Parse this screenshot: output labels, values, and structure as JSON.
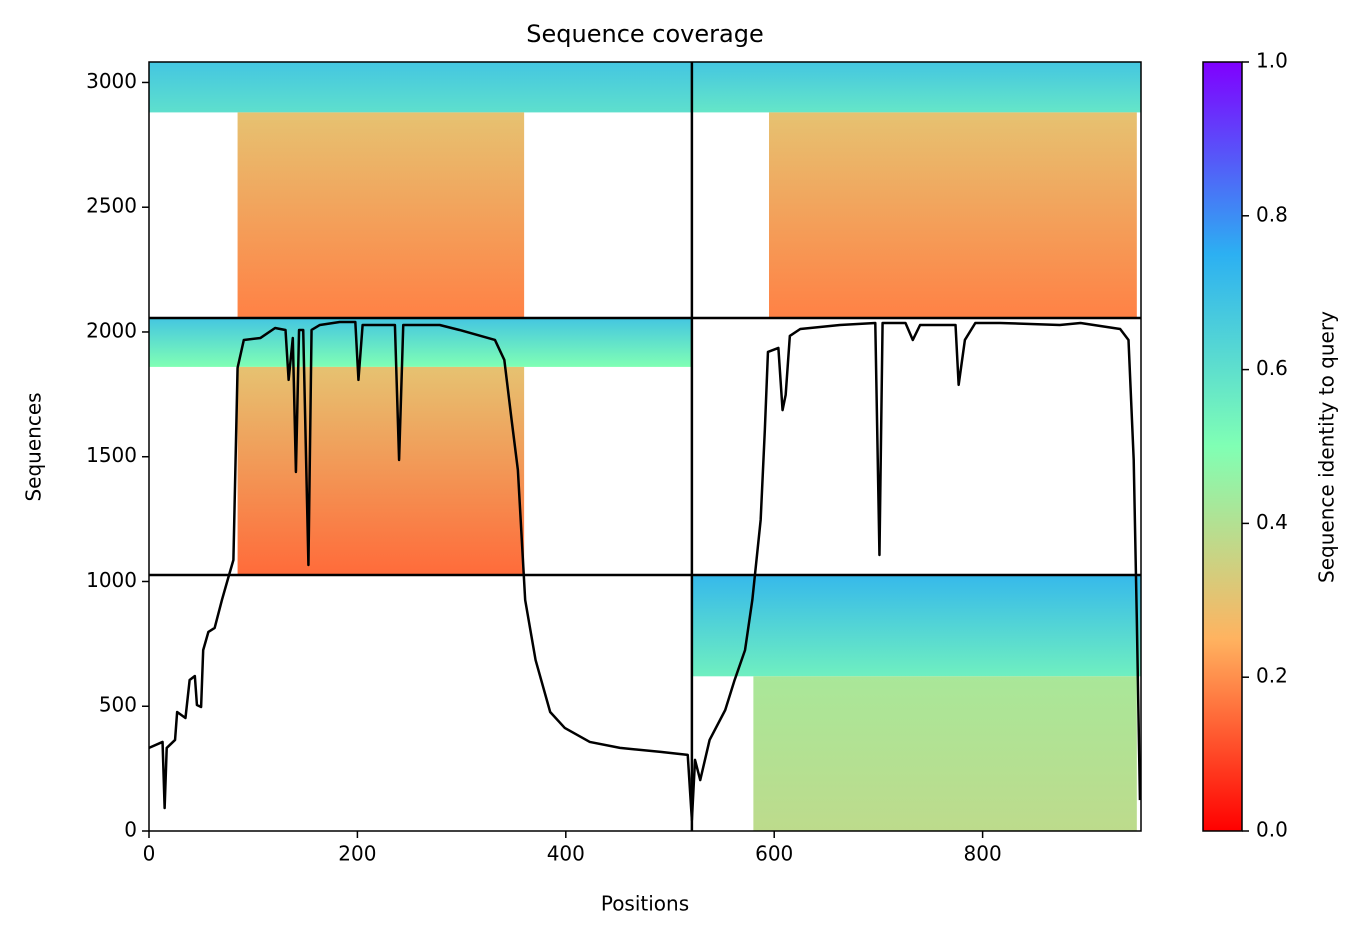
{
  "chart_data": {
    "type": "coverage",
    "title": "Sequence coverage",
    "x_label": "Positions",
    "y_label": "Sequences",
    "colorbar_label": "Sequence identity to query",
    "xlim": [
      0,
      952
    ],
    "ylim": [
      0,
      3082
    ],
    "xticks": [
      0,
      200,
      400,
      600,
      800
    ],
    "yticks": [
      0,
      500,
      1000,
      1500,
      2000,
      2500,
      3000
    ],
    "colorbar_lim": [
      0,
      1
    ],
    "colorbar_ticks": [
      {
        "value": 0,
        "label": "0.0"
      },
      0.2,
      0.4,
      0.6,
      0.8,
      {
        "value": 1,
        "label": "1.0"
      }
    ],
    "colormap": {
      "stops": [
        0,
        0.25,
        0.5,
        0.75,
        1
      ],
      "colors": [
        "#ff0000",
        "#ffb360",
        "#80ffb4",
        "#2cb0f2",
        "#8000ff"
      ]
    },
    "dividers": {
      "x": [
        521
      ],
      "y": [
        1026,
        2056
      ],
      "color": "#000000"
    },
    "blocks": [
      {
        "x": [
          0,
          521
        ],
        "y": [
          2880,
          3082
        ],
        "identity": [
          0.68,
          0.6
        ]
      },
      {
        "x": [
          85,
          360
        ],
        "y": [
          2056,
          2880
        ],
        "identity": [
          0.3,
          0.18
        ]
      },
      {
        "x": [
          521,
          952
        ],
        "y": [
          2880,
          3082
        ],
        "identity": [
          0.68,
          0.58
        ]
      },
      {
        "x": [
          595,
          948
        ],
        "y": [
          2056,
          2880
        ],
        "identity": [
          0.3,
          0.18
        ]
      },
      {
        "x": [
          0,
          521
        ],
        "y": [
          1860,
          2056
        ],
        "identity": [
          0.68,
          0.5
        ]
      },
      {
        "x": [
          85,
          360
        ],
        "y": [
          1026,
          1860
        ],
        "identity": [
          0.3,
          0.15
        ]
      },
      {
        "x": [
          521,
          952
        ],
        "y": [
          620,
          1026
        ],
        "identity": [
          0.72,
          0.55
        ]
      },
      {
        "x": [
          580,
          948
        ],
        "y": [
          0,
          620
        ],
        "identity": [
          0.42,
          0.38
        ]
      }
    ],
    "line_color": "#000000",
    "x": [
      0,
      13,
      15,
      17,
      25,
      27,
      35,
      39,
      44,
      46,
      50,
      52,
      57,
      63,
      70,
      76,
      81,
      85,
      91,
      107,
      121,
      131,
      134,
      138,
      141,
      144,
      148,
      153,
      156,
      164,
      183,
      198,
      201,
      205,
      236,
      240,
      244,
      279,
      298,
      332,
      341,
      348,
      354,
      361,
      371,
      385,
      399,
      423,
      452,
      491,
      517,
      521,
      524,
      529,
      538,
      553,
      562,
      572,
      579,
      587,
      591,
      594,
      604,
      608,
      611,
      615,
      625,
      663,
      697,
      701,
      704,
      726,
      733,
      740,
      774,
      777,
      783,
      793,
      817,
      874,
      894,
      932,
      940,
      945,
      948,
      951
    ],
    "values": [
      333,
      357,
      92,
      333,
      365,
      477,
      453,
      605,
      621,
      505,
      497,
      725,
      798,
      814,
      926,
      1014,
      1086,
      1856,
      1968,
      1976,
      2016,
      2008,
      1808,
      1976,
      1439,
      2008,
      2008,
      1066,
      2008,
      2028,
      2040,
      2040,
      1808,
      2028,
      2028,
      1487,
      2028,
      2028,
      2008,
      1968,
      1888,
      1647,
      1447,
      926,
      685,
      477,
      413,
      357,
      333,
      317,
      305,
      44,
      285,
      204,
      365,
      485,
      605,
      725,
      926,
      1247,
      1607,
      1920,
      1936,
      1687,
      1748,
      1984,
      2012,
      2028,
      2036,
      1106,
      2036,
      2036,
      1968,
      2028,
      2028,
      1788,
      1968,
      2036,
      2036,
      2028,
      2036,
      2012,
      1968,
      1487,
      846,
      124
    ]
  }
}
